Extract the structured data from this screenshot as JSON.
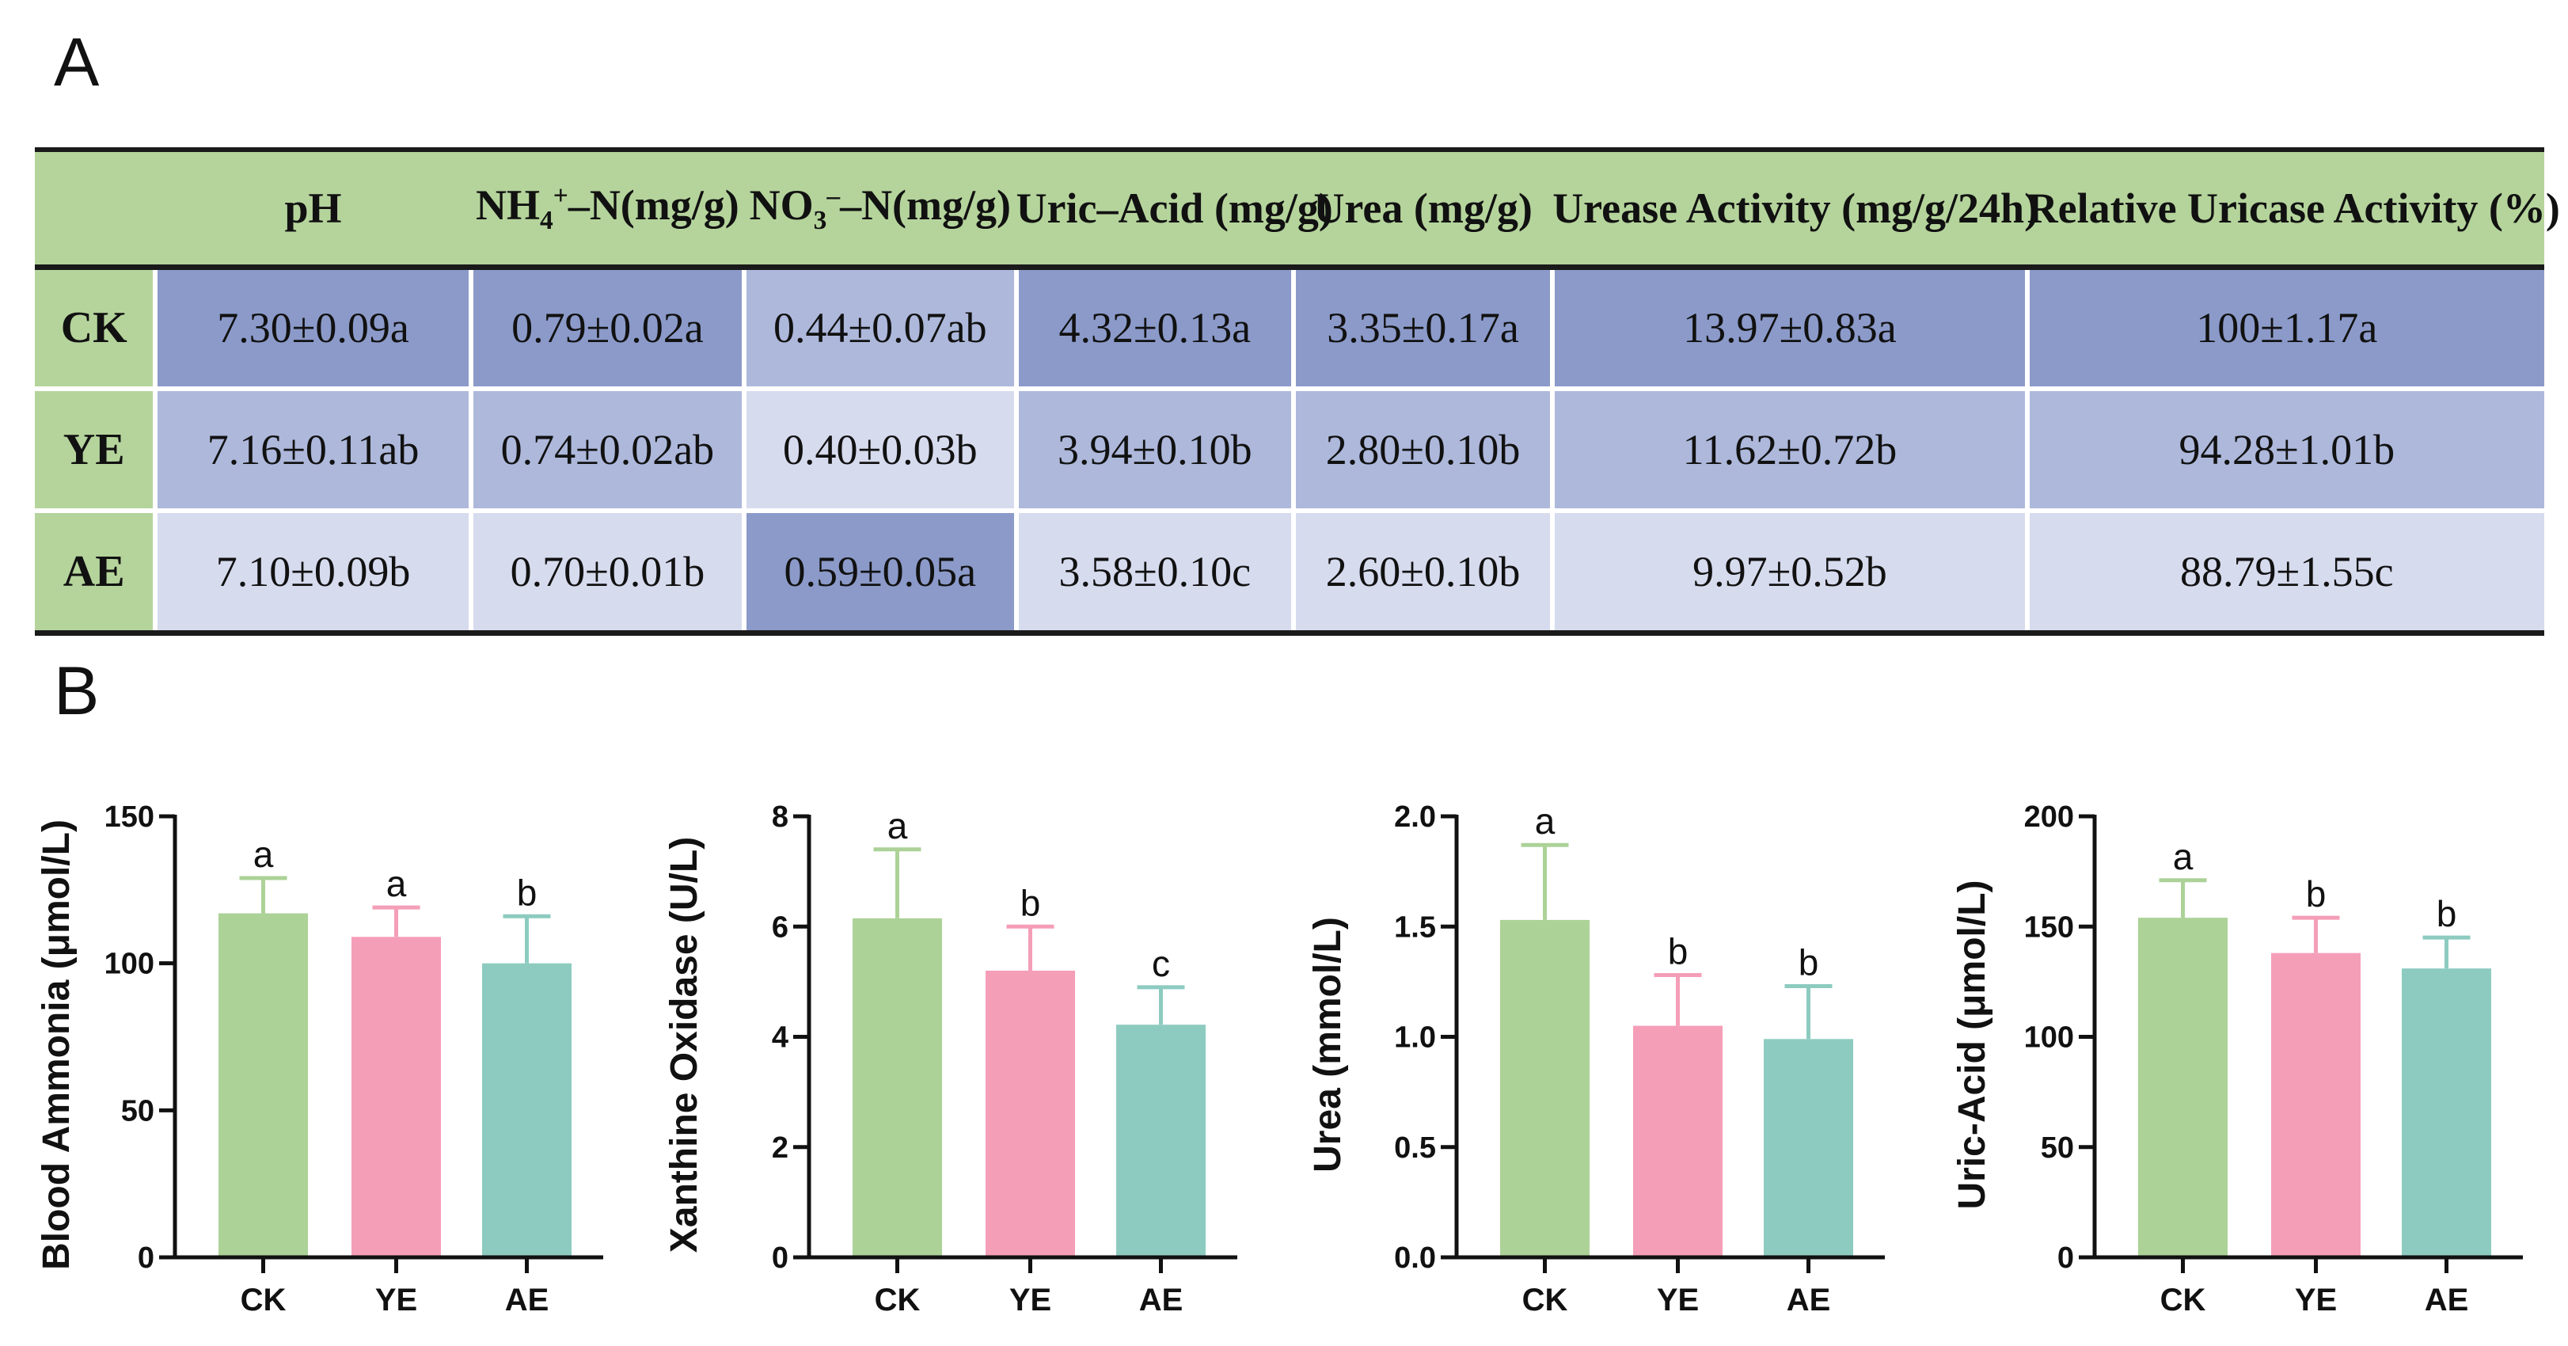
{
  "panels": {
    "a": "A",
    "b": "B"
  },
  "colors": {
    "header": "#b5d49c",
    "dark": "#8b9ac9",
    "mid": "#adb8db",
    "light": "#d7dbee",
    "CK": "#acd297",
    "YE": "#f59eb8",
    "AE": "#8dcbc0"
  },
  "table": {
    "columns": [
      {
        "key": "pH",
        "main": "pH"
      },
      {
        "key": "nh4",
        "main": "NH",
        "sub": "4",
        "sup": "+",
        "tail": "–N(mg/g)"
      },
      {
        "key": "no3",
        "main": "NO",
        "sub": "3",
        "sup": "–",
        "tail": "–N(mg/g)"
      },
      {
        "key": "uric",
        "main": "Uric–Acid (mg/g)"
      },
      {
        "key": "urea",
        "main": "Urea (mg/g)"
      },
      {
        "key": "urease",
        "main": "Urease Activity (mg/g/24h)"
      },
      {
        "key": "uricase",
        "main": "Relative Uricase Activity (%)"
      }
    ],
    "rows": [
      {
        "group": "CK",
        "cells": [
          {
            "text": "7.30±0.09a",
            "shade": "dark"
          },
          {
            "text": "0.79±0.02a",
            "shade": "dark"
          },
          {
            "text": "0.44±0.07ab",
            "shade": "mid"
          },
          {
            "text": "4.32±0.13a",
            "shade": "dark"
          },
          {
            "text": "3.35±0.17a",
            "shade": "dark"
          },
          {
            "text": "13.97±0.83a",
            "shade": "dark"
          },
          {
            "text": "100±1.17a",
            "shade": "dark"
          }
        ]
      },
      {
        "group": "YE",
        "cells": [
          {
            "text": "7.16±0.11ab",
            "shade": "mid"
          },
          {
            "text": "0.74±0.02ab",
            "shade": "mid"
          },
          {
            "text": "0.40±0.03b",
            "shade": "light"
          },
          {
            "text": "3.94±0.10b",
            "shade": "mid"
          },
          {
            "text": "2.80±0.10b",
            "shade": "mid"
          },
          {
            "text": "11.62±0.72b",
            "shade": "mid"
          },
          {
            "text": "94.28±1.01b",
            "shade": "mid"
          }
        ]
      },
      {
        "group": "AE",
        "cells": [
          {
            "text": "7.10±0.09b",
            "shade": "light"
          },
          {
            "text": "0.70±0.01b",
            "shade": "light"
          },
          {
            "text": "0.59±0.05a",
            "shade": "dark"
          },
          {
            "text": "3.58±0.10c",
            "shade": "light"
          },
          {
            "text": "2.60±0.10b",
            "shade": "light"
          },
          {
            "text": "9.97±0.52b",
            "shade": "light"
          },
          {
            "text": "88.79±1.55c",
            "shade": "light"
          }
        ]
      }
    ]
  },
  "chart_data": [
    {
      "type": "bar",
      "title": "",
      "xlabel": "",
      "ylabel": "Blood Ammonia (μmol/L)",
      "categories": [
        "CK",
        "YE",
        "AE"
      ],
      "values": [
        117,
        109,
        100
      ],
      "errors": [
        12,
        10,
        16
      ],
      "significance": [
        "a",
        "a",
        "b"
      ],
      "ylim": [
        0,
        150
      ],
      "yticks": [
        0,
        50,
        100,
        150
      ],
      "tick_labels": [
        "0",
        "50",
        "100",
        "150"
      ],
      "grid": false
    },
    {
      "type": "bar",
      "title": "",
      "xlabel": "",
      "ylabel": "Xanthine Oxidase (U/L)",
      "categories": [
        "CK",
        "YE",
        "AE"
      ],
      "values": [
        6.15,
        5.2,
        4.22
      ],
      "errors": [
        1.25,
        0.8,
        0.68
      ],
      "significance": [
        "a",
        "b",
        "c"
      ],
      "ylim": [
        0,
        8
      ],
      "yticks": [
        0,
        2,
        4,
        6,
        8
      ],
      "tick_labels": [
        "0",
        "2",
        "4",
        "6",
        "8"
      ],
      "grid": false
    },
    {
      "type": "bar",
      "title": "",
      "xlabel": "",
      "ylabel": "Urea (mmol/L)",
      "categories": [
        "CK",
        "YE",
        "AE"
      ],
      "values": [
        1.53,
        1.05,
        0.99
      ],
      "errors": [
        0.34,
        0.23,
        0.24
      ],
      "significance": [
        "a",
        "b",
        "b"
      ],
      "ylim": [
        0,
        2.0
      ],
      "yticks": [
        0,
        0.5,
        1.0,
        1.5,
        2.0
      ],
      "tick_labels": [
        "0.0",
        "0.5",
        "1.0",
        "1.5",
        "2.0"
      ],
      "grid": false
    },
    {
      "type": "bar",
      "title": "",
      "xlabel": "",
      "ylabel": "Uric-Acid (μmol/L)",
      "categories": [
        "CK",
        "YE",
        "AE"
      ],
      "values": [
        154,
        138,
        131
      ],
      "errors": [
        17,
        16,
        14
      ],
      "significance": [
        "a",
        "b",
        "b"
      ],
      "ylim": [
        0,
        200
      ],
      "yticks": [
        0,
        50,
        100,
        150,
        200
      ],
      "tick_labels": [
        "0",
        "50",
        "100",
        "150",
        "200"
      ],
      "grid": false
    }
  ]
}
